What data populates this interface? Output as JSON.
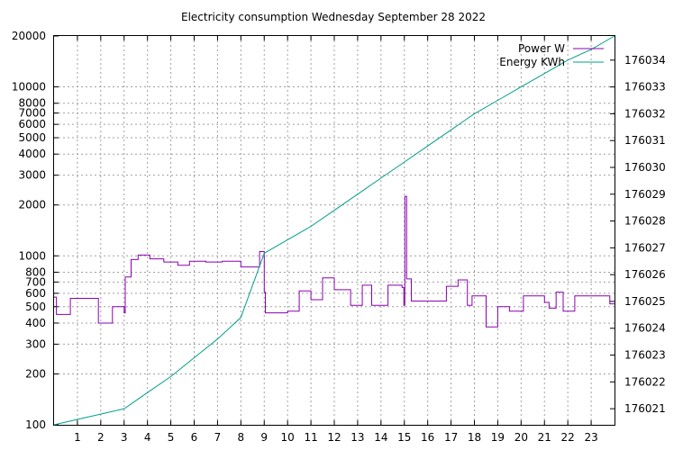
{
  "chart_data": {
    "type": "line",
    "title": "Electricity consumption Wednesday September 28 2022",
    "xlabel": "",
    "ylabel": "",
    "y2label": "",
    "grid": true,
    "legend_position": "top-right",
    "xlim": [
      0,
      24
    ],
    "ylim": [
      100,
      20000
    ],
    "y_scale": "log",
    "y2lim": [
      176020.4,
      176034.9
    ],
    "x_ticks": [
      1,
      2,
      3,
      4,
      5,
      6,
      7,
      8,
      9,
      10,
      11,
      12,
      13,
      14,
      15,
      16,
      17,
      18,
      19,
      20,
      21,
      22,
      23
    ],
    "y_ticks": [
      100,
      200,
      300,
      400,
      500,
      600,
      700,
      800,
      1000,
      2000,
      3000,
      4000,
      5000,
      6000,
      7000,
      8000,
      10000,
      20000
    ],
    "y2_ticks": [
      176021,
      176022,
      176023,
      176024,
      176025,
      176026,
      176027,
      176028,
      176029,
      176030,
      176031,
      176032,
      176033,
      176034
    ],
    "series": [
      {
        "name": "Power W",
        "axis": "y",
        "color": "#8b00b0",
        "step": true,
        "x": [
          0,
          0.1,
          0.7,
          1.9,
          2.5,
          3.0,
          3.05,
          3.3,
          3.6,
          4.1,
          4.7,
          5.3,
          5.8,
          6.5,
          7.2,
          8.0,
          8.8,
          9.0,
          9.05,
          10.0,
          10.5,
          11.0,
          11.5,
          12.0,
          12.7,
          13.2,
          13.6,
          14.3,
          14.9,
          14.98,
          15.02,
          15.1,
          15.3,
          16.8,
          17.3,
          17.7,
          17.9,
          18.5,
          19.0,
          19.5,
          20.1,
          21.0,
          21.2,
          21.5,
          21.8,
          22.3,
          23.8
        ],
        "y": [
          570,
          450,
          560,
          400,
          500,
          460,
          750,
          950,
          1010,
          960,
          920,
          880,
          930,
          920,
          930,
          860,
          1060,
          610,
          460,
          470,
          620,
          550,
          740,
          630,
          510,
          670,
          510,
          670,
          650,
          510,
          2250,
          730,
          540,
          660,
          720,
          510,
          580,
          380,
          500,
          470,
          580,
          530,
          490,
          610,
          470,
          580,
          520
        ]
      },
      {
        "name": "Energy KWh",
        "axis": "y2",
        "color": "#009e89",
        "step": false,
        "x": [
          0,
          1,
          2,
          3,
          4,
          5,
          6,
          7,
          8,
          9,
          10,
          11,
          12,
          13,
          14,
          15,
          16,
          17,
          18,
          19,
          20,
          21,
          22,
          23,
          24
        ],
        "y": [
          176020.4,
          176020.6,
          176020.8,
          176021.0,
          176021.6,
          176022.2,
          176022.9,
          176023.6,
          176024.4,
          176026.8,
          176027.3,
          176027.8,
          176028.4,
          176029.0,
          176029.6,
          176030.2,
          176030.8,
          176031.4,
          176032.0,
          176032.5,
          176033.0,
          176033.5,
          176034.0,
          176034.4,
          176034.9
        ]
      }
    ]
  }
}
